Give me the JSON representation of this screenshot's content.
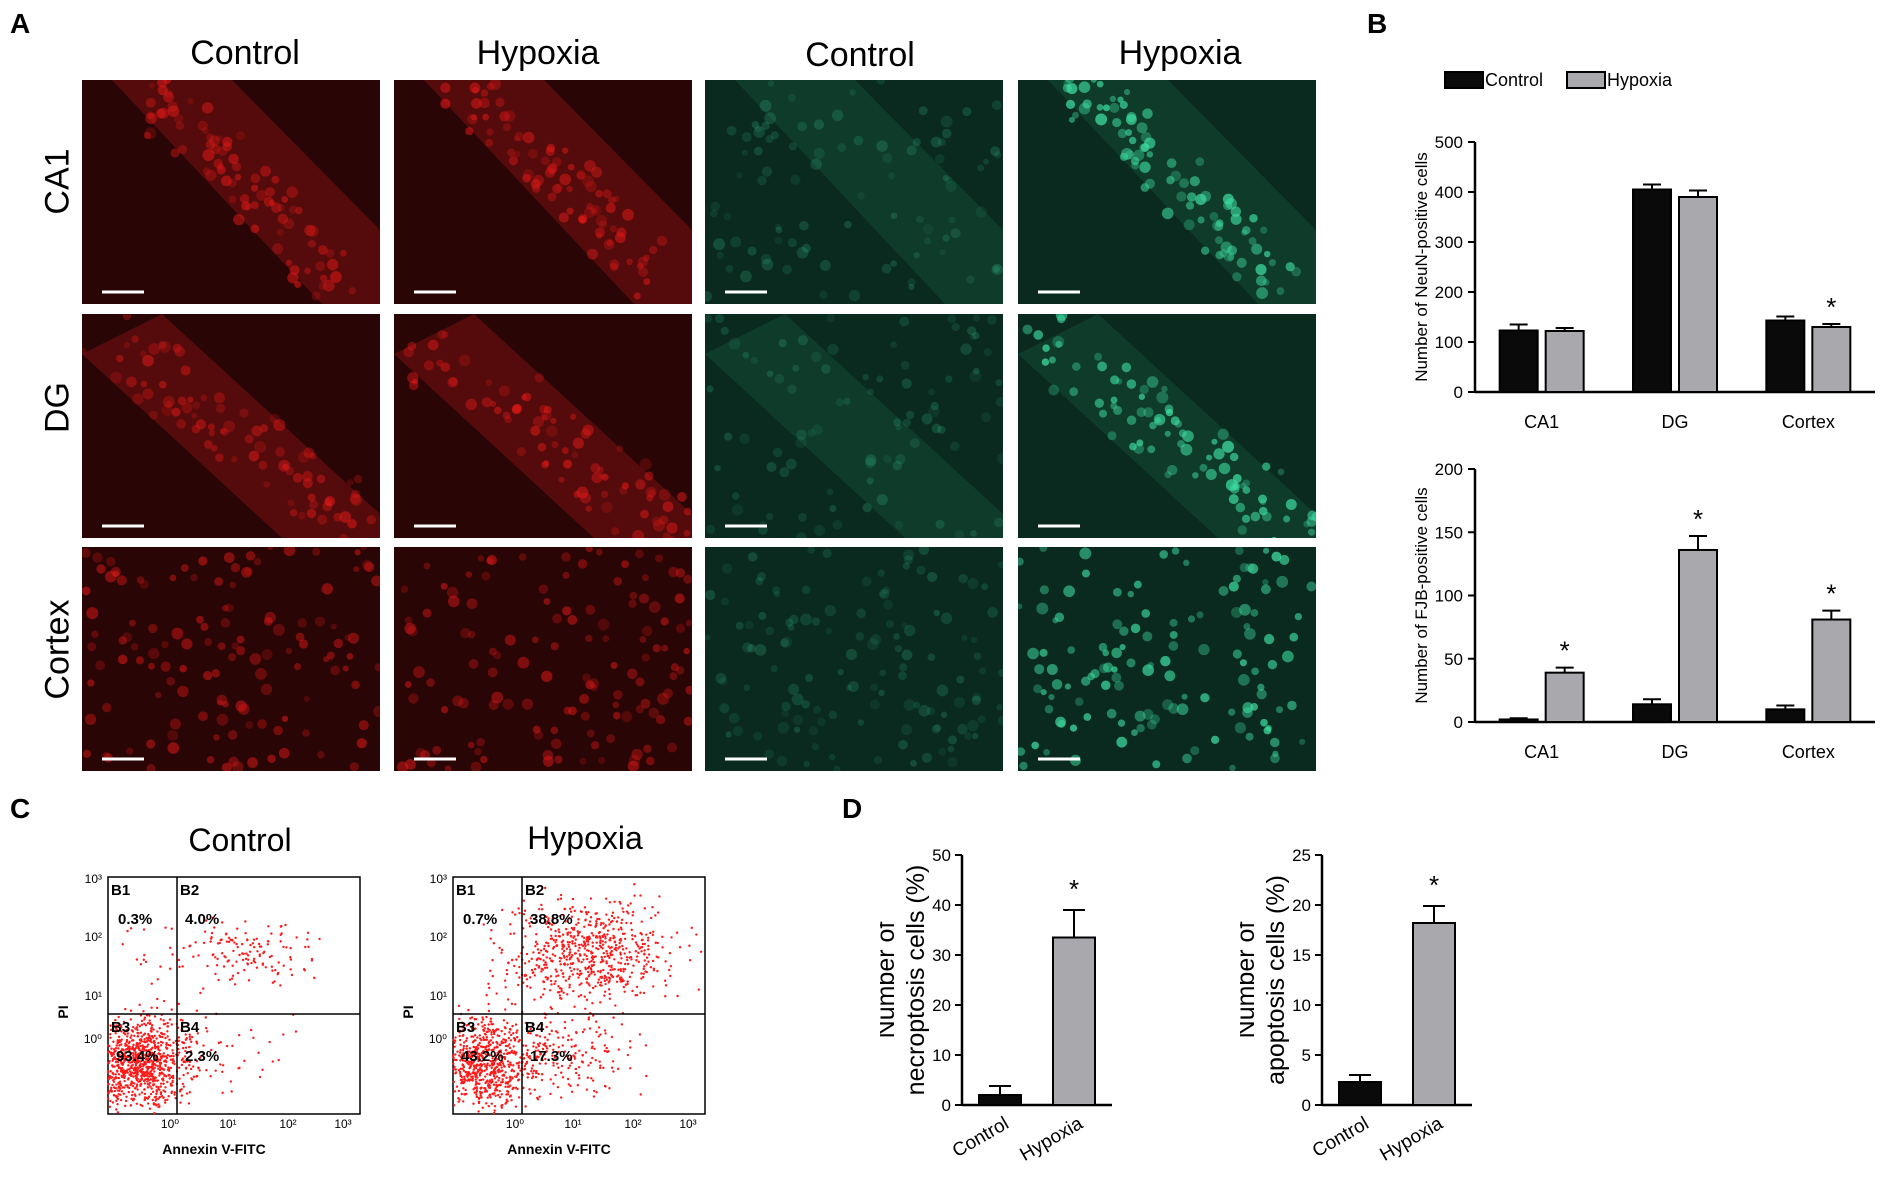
{
  "panels": {
    "a": "A",
    "b": "B",
    "c": "C",
    "d": "D"
  },
  "panel_a": {
    "columns": [
      "Control",
      "Hypoxia",
      "Control",
      "Hypoxia"
    ],
    "rows": [
      "CA1",
      "DG",
      "Cortex"
    ]
  },
  "colors": {
    "control": "#0a0a0a",
    "hypoxia": "#a9a9ad",
    "red_stain": "#e01818",
    "green_stain": "#3ddca0",
    "dots": "#ff1a1a"
  },
  "flow": {
    "xlabel": "Annexin V-FITC",
    "ylabel": "PI",
    "ticks_y": [
      "10³",
      "10²",
      "10¹",
      "10⁰"
    ],
    "ticks_x": [
      "10⁰",
      "10¹",
      "10²",
      "10³"
    ],
    "plots": [
      {
        "title": "Control",
        "q": [
          {
            "name": "B1",
            "pct": "0.3%"
          },
          {
            "name": "B2",
            "pct": "4.0%"
          },
          {
            "name": "B3",
            "pct": "93.4%"
          },
          {
            "name": "B4",
            "pct": "2.3%"
          }
        ]
      },
      {
        "title": "Hypoxia",
        "q": [
          {
            "name": "B1",
            "pct": "0.7%"
          },
          {
            "name": "B2",
            "pct": "38.8%"
          },
          {
            "name": "B3",
            "pct": "43.2%"
          },
          {
            "name": "B4",
            "pct": "17.3%"
          }
        ]
      }
    ]
  },
  "chart_data": [
    {
      "id": "neun",
      "type": "bar",
      "categories": [
        "CA1",
        "DG",
        "Cortex"
      ],
      "series": [
        {
          "name": "Control",
          "values": [
            123,
            405,
            143
          ],
          "errors": [
            12,
            10,
            8
          ]
        },
        {
          "name": "Hypoxia",
          "values": [
            122,
            390,
            130
          ],
          "errors": [
            6,
            13,
            6
          ]
        }
      ],
      "ylabel": "Number of NeuN-positive cells",
      "ylim": [
        0,
        500
      ],
      "yticks": [
        0,
        100,
        200,
        300,
        400,
        500
      ],
      "significance": [
        {
          "category": "Cortex",
          "series": "Hypoxia",
          "mark": "*"
        }
      ],
      "legend": [
        "Control",
        "Hypoxia"
      ],
      "legend_position": "top"
    },
    {
      "id": "fjb",
      "type": "bar",
      "categories": [
        "CA1",
        "DG",
        "Cortex"
      ],
      "series": [
        {
          "name": "Control",
          "values": [
            2,
            14,
            10
          ],
          "errors": [
            1,
            4,
            3
          ]
        },
        {
          "name": "Hypoxia",
          "values": [
            39,
            136,
            81
          ],
          "errors": [
            4,
            11,
            7
          ]
        }
      ],
      "ylabel": "Number of FJB-positive cells",
      "ylim": [
        0,
        200
      ],
      "yticks": [
        0,
        50,
        100,
        150,
        200
      ],
      "significance": [
        {
          "category": "CA1",
          "series": "Hypoxia",
          "mark": "*"
        },
        {
          "category": "DG",
          "series": "Hypoxia",
          "mark": "*"
        },
        {
          "category": "Cortex",
          "series": "Hypoxia",
          "mark": "*"
        }
      ]
    },
    {
      "id": "necro",
      "type": "bar",
      "categories": [
        "Control",
        "Hypoxia"
      ],
      "values": [
        2,
        33.5
      ],
      "errors": [
        1.8,
        5.5
      ],
      "ylabel": "Number of necroptosis cells (%)",
      "ylabel_lines": [
        "Number of",
        "necroptosis cells (%)"
      ],
      "ylim": [
        0,
        50
      ],
      "yticks": [
        0,
        10,
        20,
        30,
        40,
        50
      ],
      "significance": [
        {
          "category": "Hypoxia",
          "mark": "*"
        }
      ]
    },
    {
      "id": "apop",
      "type": "bar",
      "categories": [
        "Control",
        "Hypoxia"
      ],
      "values": [
        2.3,
        18.2
      ],
      "errors": [
        0.7,
        1.7
      ],
      "ylabel": "Number of apoptosis cells (%)",
      "ylabel_lines": [
        "Number of",
        "apoptosis cells (%)"
      ],
      "ylim": [
        0,
        25
      ],
      "yticks": [
        0,
        5,
        10,
        15,
        20,
        25
      ],
      "significance": [
        {
          "category": "Hypoxia",
          "mark": "*"
        }
      ]
    }
  ]
}
